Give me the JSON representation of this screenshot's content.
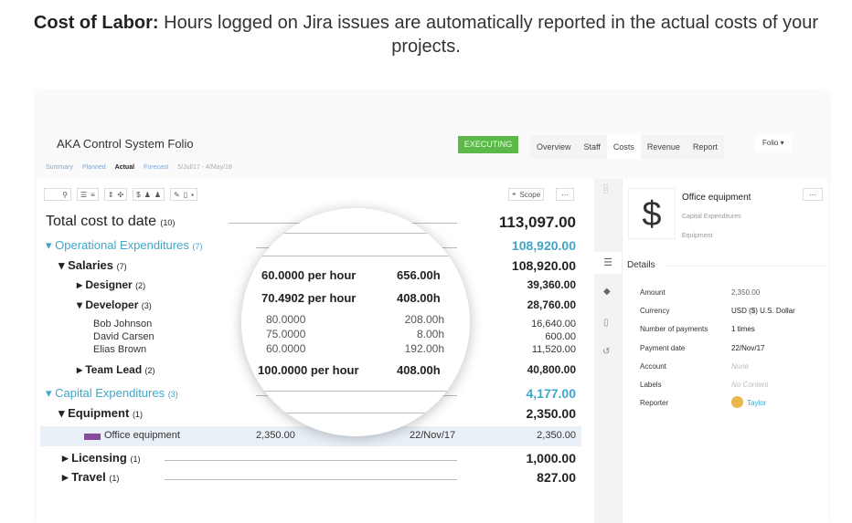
{
  "headline": {
    "bold": "Cost of Labor:",
    "text": " Hours logged on Jira issues are automatically reported in the actual costs of your projects."
  },
  "app": {
    "title": "AKA Control System Folio",
    "status": "EXECUTING",
    "status_color": "#5cb848",
    "tabs": [
      "Overview",
      "Staff",
      "Costs",
      "Revenue",
      "Report"
    ],
    "folio": "Folio",
    "subtabs": [
      "Summary",
      "Planned",
      "Actual",
      "Forecast"
    ],
    "date_range": "5/Jul/17 - 4/May/18",
    "scope": "Scope"
  },
  "tree": {
    "total": {
      "label": "Total cost to date",
      "count": "(10)",
      "value": "113,097.00"
    },
    "opex": {
      "label": "Operational Expenditures",
      "count": "(7)",
      "value": "108,920.00"
    },
    "salaries": {
      "label": "Salaries",
      "count": "(7)",
      "value": "108,920.00"
    },
    "designer": {
      "label": "Designer",
      "count": "(2)",
      "value": "39,360.00",
      "rate": "60.0000 per hour",
      "hours": "656.00h"
    },
    "developer": {
      "label": "Developer",
      "count": "(3)",
      "value": "28,760.00",
      "rate": "70.4902 per hour",
      "hours": "408.00h"
    },
    "people": [
      {
        "name": "Bob Johnson",
        "rate": "80.0000",
        "hours": "208.00h",
        "value": "16,640.00"
      },
      {
        "name": "David Carsen",
        "rate": "75.0000",
        "hours": "8.00h",
        "value": "600.00"
      },
      {
        "name": "Elias Brown",
        "rate": "60.0000",
        "hours": "192.00h",
        "value": "11,520.00"
      }
    ],
    "teamlead": {
      "label": "Team Lead",
      "count": "(2)",
      "value": "40,800.00",
      "rate": "100.0000 per hour",
      "hours": "408.00h"
    },
    "capex": {
      "label": "Capital Expenditures",
      "count": "(3)",
      "value": "4,177.00"
    },
    "equipment": {
      "label": "Equipment",
      "count": "(1)",
      "value": "2,350.00"
    },
    "office": {
      "label": "Office equipment",
      "amount": "2,350.00",
      "date": "22/Nov/17",
      "value": "2,350.00"
    },
    "licensing": {
      "label": "Licensing",
      "count": "(1)",
      "value": "1,000.00"
    },
    "travel": {
      "label": "Travel",
      "count": "(1)",
      "value": "827.00"
    }
  },
  "detail": {
    "title": "Office equipment",
    "category": "Capital Expenditures",
    "subcategory": "Equipment",
    "icon": "dollar-icon",
    "section": "Details",
    "fields": [
      [
        "Amount",
        "2,350.00"
      ],
      [
        "Currency",
        "USD ($) U.S. Dollar"
      ],
      [
        "Number of payments",
        "1 times"
      ],
      [
        "Payment date",
        "22/Nov/17"
      ],
      [
        "Account",
        "None"
      ],
      [
        "Labels",
        "No Content"
      ],
      [
        "Reporter",
        "Taylor"
      ]
    ]
  }
}
